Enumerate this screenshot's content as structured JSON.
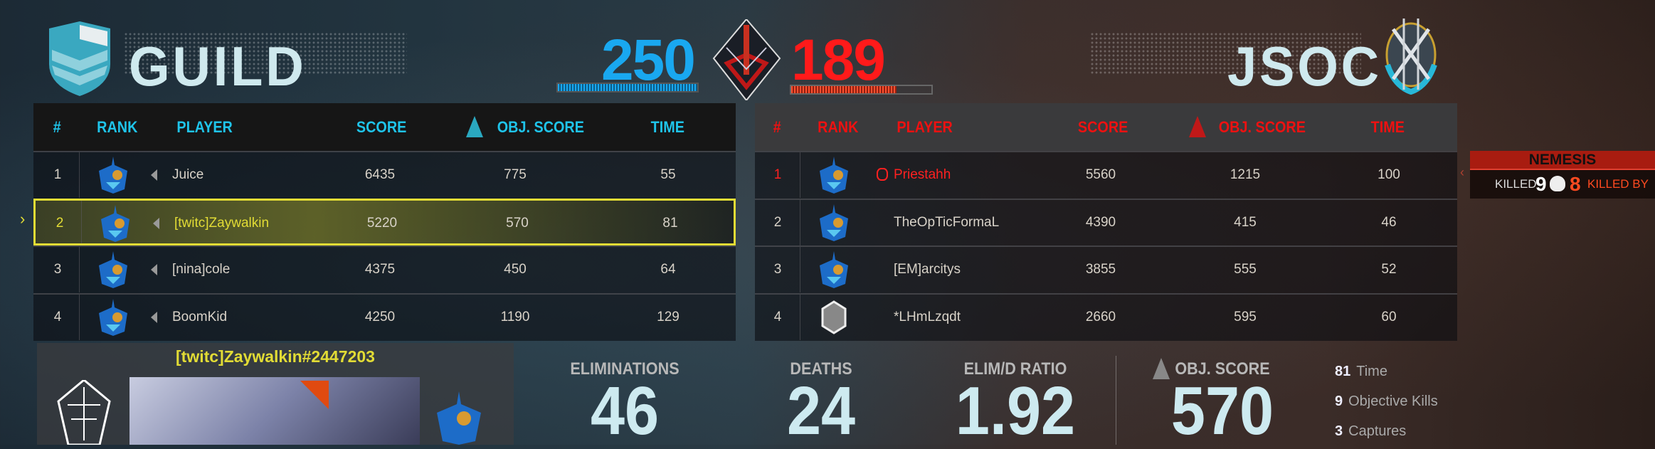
{
  "teams": {
    "left": {
      "name": "GUILD",
      "score": "250",
      "color": "#19a8f0",
      "progress": 1.0
    },
    "right": {
      "name": "JSOC",
      "score": "189",
      "color": "#ff1a1a",
      "progress": 0.75
    }
  },
  "left_table": {
    "headers": [
      "#",
      "RANK",
      "PLAYER",
      "SCORE",
      "OBJ. SCORE",
      "TIME"
    ],
    "header_color": "#1fc4ea",
    "rows": [
      {
        "num": "1",
        "player": "Juice",
        "score": "6435",
        "obj": "775",
        "time": "55"
      },
      {
        "num": "2",
        "player": "[twitc]Zaywalkin",
        "score": "5220",
        "obj": "570",
        "time": "81",
        "selected": true
      },
      {
        "num": "3",
        "player": "[nina]cole",
        "score": "4375",
        "obj": "450",
        "time": "64"
      },
      {
        "num": "4",
        "player": "BoomKid",
        "score": "4250",
        "obj": "1190",
        "time": "129"
      }
    ]
  },
  "right_table": {
    "headers": [
      "#",
      "RANK",
      "PLAYER",
      "SCORE",
      "OBJ. SCORE",
      "TIME"
    ],
    "header_color": "#ee1111",
    "rows": [
      {
        "num": "1",
        "player": "Priestahh",
        "score": "5560",
        "obj": "1215",
        "time": "100",
        "nemesis": true
      },
      {
        "num": "2",
        "player": "TheOpTicFormaL",
        "score": "4390",
        "obj": "415",
        "time": "46"
      },
      {
        "num": "3",
        "player": "[EM]arcitys",
        "score": "3855",
        "obj": "555",
        "time": "52"
      },
      {
        "num": "4",
        "player": "*LHmLzqdt",
        "score": "2660",
        "obj": "595",
        "time": "60"
      }
    ]
  },
  "nemesis": {
    "title": "NEMESIS",
    "killed_label": "KILLED",
    "killed": "9",
    "killed_by": "8",
    "killed_by_label": "KILLED BY"
  },
  "player_card": {
    "name": "[twitc]Zaywalkin#2447203"
  },
  "stats": [
    {
      "label": "ELIMINATIONS",
      "value": "46"
    },
    {
      "label": "DEATHS",
      "value": "24"
    },
    {
      "label": "ELIM/D RATIO",
      "value": "1.92"
    },
    {
      "label": "OBJ. SCORE",
      "value": "570"
    }
  ],
  "side_stats": [
    {
      "value": "81",
      "label": "Time"
    },
    {
      "value": "9",
      "label": "Objective Kills"
    },
    {
      "value": "3",
      "label": "Captures"
    }
  ]
}
